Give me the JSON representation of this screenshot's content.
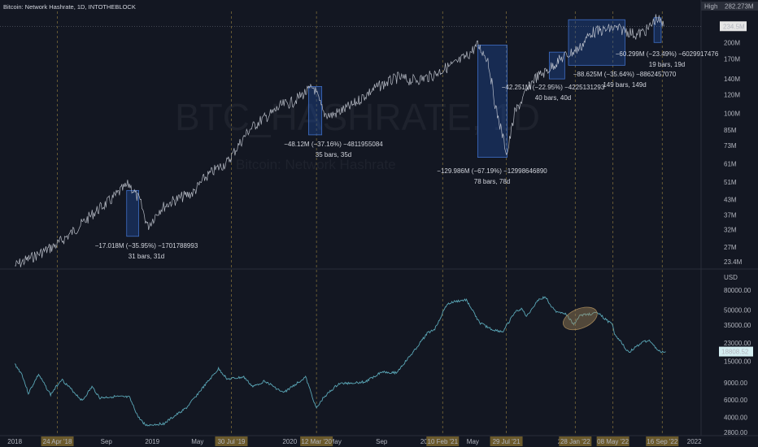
{
  "header": {
    "title": "Bitcoin: Network Hashrate, 1D, INTOTHEBLOCK"
  },
  "watermark": {
    "symbol": "BTC_HASHRATE, 1D",
    "name": "Bitcoin: Network Hashrate"
  },
  "colors": {
    "background": "#131722",
    "price_line": "#5aa6b6",
    "hash_line": "#c8ccd6",
    "box_fill": "#1f4b9b",
    "box_stroke": "#3f6fc7",
    "date_tag_bg": "#6b5a2c",
    "ellipse": "#a08458"
  },
  "chart_data": [
    {
      "type": "line",
      "title": "Bitcoin: Network Hashrate",
      "scale": "log",
      "ylim": [
        22000000,
        300000000
      ],
      "y_ticks": [
        "234.5M",
        "200M",
        "170M",
        "140M",
        "120M",
        "100M",
        "85M",
        "73M",
        "61M",
        "51M",
        "43M",
        "37M",
        "32M",
        "27M",
        "23.4M"
      ],
      "y_tick_values": [
        234500000,
        200000000,
        170000000,
        140000000,
        120000000,
        100000000,
        85000000,
        73000000,
        61000000,
        51000000,
        43000000,
        37000000,
        32000000,
        27000000,
        23400000
      ],
      "price_labels": {
        "high_label": "High",
        "high_value": "282.273M",
        "current": "234.5M"
      },
      "series": [
        {
          "name": "Bitcoin: Network Hashrate",
          "x": [
            "2018-01-01",
            "2018-03-01",
            "2018-04-20",
            "2018-05-20",
            "2018-06-20",
            "2018-08-01",
            "2018-09-15",
            "2018-10-10",
            "2018-11-01",
            "2018-11-30",
            "2018-12-20",
            "2019-01-20",
            "2019-02-20",
            "2019-03-20",
            "2019-04-20",
            "2019-05-20",
            "2019-06-20",
            "2019-07-20",
            "2019-08-15",
            "2019-09-15",
            "2019-10-15",
            "2019-11-15",
            "2019-12-10",
            "2020-01-10",
            "2020-02-10",
            "2020-03-05",
            "2020-03-31",
            "2020-04-20",
            "2020-05-20",
            "2020-06-15",
            "2020-07-15",
            "2020-08-15",
            "2020-09-15",
            "2020-10-15",
            "2020-11-15",
            "2020-12-15",
            "2021-01-15",
            "2021-02-15",
            "2021-03-15",
            "2021-04-15",
            "2021-05-14",
            "2021-06-10",
            "2021-07-01",
            "2021-07-31",
            "2021-08-20",
            "2021-09-10",
            "2021-10-10",
            "2021-11-10",
            "2021-12-10",
            "2021-12-31",
            "2022-01-15",
            "2022-02-10",
            "2022-03-10",
            "2022-04-10",
            "2022-05-10",
            "2022-06-10",
            "2022-07-10",
            "2022-08-10",
            "2022-09-01",
            "2022-09-20"
          ],
          "values": [
            22500000,
            25000000,
            27500000,
            30000000,
            33000000,
            38000000,
            43000000,
            47000000,
            50000000,
            42000000,
            33000000,
            39000000,
            42000000,
            44000000,
            46000000,
            53000000,
            58000000,
            62000000,
            72000000,
            85000000,
            93000000,
            100000000,
            108000000,
            112000000,
            122000000,
            129000000,
            100000000,
            98000000,
            103000000,
            108000000,
            118000000,
            128000000,
            135000000,
            142000000,
            138000000,
            140000000,
            145000000,
            155000000,
            162000000,
            175000000,
            195000000,
            170000000,
            105000000,
            67000000,
            100000000,
            115000000,
            140000000,
            150000000,
            165000000,
            175000000,
            180000000,
            190000000,
            220000000,
            225000000,
            230000000,
            225000000,
            215000000,
            228000000,
            255000000,
            234500000
          ]
        }
      ],
      "annotations": [
        {
          "line1": "−17.018M (−35.95%) −1701788993",
          "line2": "31 bars, 31d"
        },
        {
          "line1": "−48.12M (−37.16%) −4811955084",
          "line2": "35 bars, 35d"
        },
        {
          "line1": "−129.986M (−67.19%) −12998646890",
          "line2": "78 bars, 78d"
        },
        {
          "line1": "−42.251M (−22.95%) −4225131293",
          "line2": "40 bars, 40d"
        },
        {
          "line1": "−88.625M (−35.64%) −8862457070",
          "line2": "149 bars, 149d"
        },
        {
          "line1": "−60.299M (−23.49%) −6029917476",
          "line2": "19 bars, 19d"
        }
      ]
    },
    {
      "type": "line",
      "scale": "log",
      "unit": "USD",
      "ylim": [
        2600,
        95000
      ],
      "y_ticks": [
        "80000.00",
        "50000.00",
        "35000.00",
        "23000.00",
        "15000.00",
        "9000.00",
        "6000.00",
        "4000.00",
        "2800.00"
      ],
      "y_tick_values": [
        80000,
        50000,
        35000,
        23000,
        15000,
        9000,
        6000,
        4000,
        2800
      ],
      "current_label": "18808.52",
      "series": [
        {
          "name": "BTCUSD",
          "x": [
            "2018-01-01",
            "2018-01-20",
            "2018-02-06",
            "2018-03-05",
            "2018-04-06",
            "2018-05-05",
            "2018-06-29",
            "2018-07-25",
            "2018-08-15",
            "2018-09-20",
            "2018-11-01",
            "2018-11-25",
            "2018-12-15",
            "2019-02-01",
            "2019-04-02",
            "2019-05-15",
            "2019-06-26",
            "2019-07-20",
            "2019-09-01",
            "2019-09-25",
            "2019-10-27",
            "2019-12-15",
            "2020-02-12",
            "2020-03-12",
            "2020-03-31",
            "2020-05-10",
            "2020-07-20",
            "2020-09-01",
            "2020-10-10",
            "2020-11-25",
            "2020-12-31",
            "2021-01-20",
            "2021-02-21",
            "2021-03-13",
            "2021-04-14",
            "2021-05-19",
            "2021-06-22",
            "2021-07-20",
            "2021-08-20",
            "2021-09-07",
            "2021-09-21",
            "2021-10-20",
            "2021-11-10",
            "2021-12-04",
            "2021-12-31",
            "2022-01-24",
            "2022-02-10",
            "2022-03-28",
            "2022-05-08",
            "2022-05-12",
            "2022-06-18",
            "2022-07-30",
            "2022-08-15",
            "2022-09-06",
            "2022-09-25"
          ],
          "values": [
            14000,
            11000,
            7000,
            11000,
            6800,
            9800,
            5900,
            8200,
            6300,
            6500,
            6400,
            4000,
            3300,
            3450,
            5000,
            8000,
            12500,
            9800,
            10300,
            8200,
            9400,
            7100,
            10300,
            4900,
            6400,
            8800,
            9200,
            11700,
            11400,
            18800,
            29000,
            32000,
            57000,
            61000,
            63500,
            37000,
            31500,
            30000,
            47000,
            52000,
            43000,
            63000,
            68000,
            49000,
            46500,
            36000,
            44000,
            47000,
            35000,
            29000,
            18500,
            24000,
            24300,
            18900,
            18808
          ]
        }
      ]
    }
  ],
  "x_axis": {
    "labels": [
      "2018",
      "Sep",
      "2019",
      "May",
      "2020",
      "May",
      "Sep",
      "2021",
      "May",
      "2022",
      "May",
      "2022"
    ],
    "date_tags": [
      "24 Apr '18",
      "30 Jul '19",
      "12 Mar '20",
      "10 Feb '21",
      "29 Jul '21",
      "28 Jan '22",
      "08 May '22",
      "16 Sep '22"
    ]
  }
}
